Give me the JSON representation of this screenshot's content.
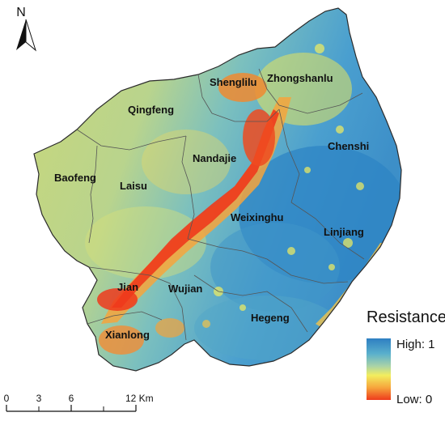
{
  "north_arrow": {
    "letter": "N"
  },
  "regions": [
    {
      "id": "shenglilu",
      "label": "Shenglilu"
    },
    {
      "id": "zhongshanlu",
      "label": "Zhongshanlu"
    },
    {
      "id": "qingfeng",
      "label": "Qingfeng"
    },
    {
      "id": "chenshi",
      "label": "Chenshi"
    },
    {
      "id": "nandajie",
      "label": "Nandajie"
    },
    {
      "id": "baofeng",
      "label": "Baofeng"
    },
    {
      "id": "laisu",
      "label": "Laisu"
    },
    {
      "id": "weixinghu",
      "label": "Weixinghu"
    },
    {
      "id": "linjiang",
      "label": "Linjiang"
    },
    {
      "id": "jian",
      "label": "Jian"
    },
    {
      "id": "wujian",
      "label": "Wujian"
    },
    {
      "id": "hegeng",
      "label": "Hegeng"
    },
    {
      "id": "xianlong",
      "label": "Xianlong"
    }
  ],
  "legend": {
    "title": "Resistance",
    "high_label": "High: 1",
    "low_label": "Low: 0",
    "high_value": 1,
    "low_value": 0,
    "colors": [
      "#2e7fc2",
      "#5ab0cc",
      "#a9d3a7",
      "#f2ee5e",
      "#f6a53c",
      "#ee3a1c"
    ]
  },
  "scale_bar": {
    "ticks": [
      "0",
      "3",
      "6",
      "12 Km"
    ],
    "values_km": [
      0,
      3,
      6,
      12
    ]
  },
  "colors": {
    "outline": "#2b2b2b",
    "district_border": "#555555",
    "high_resistance": "#2e7fc2",
    "low_resistance": "#ee3a1c"
  }
}
